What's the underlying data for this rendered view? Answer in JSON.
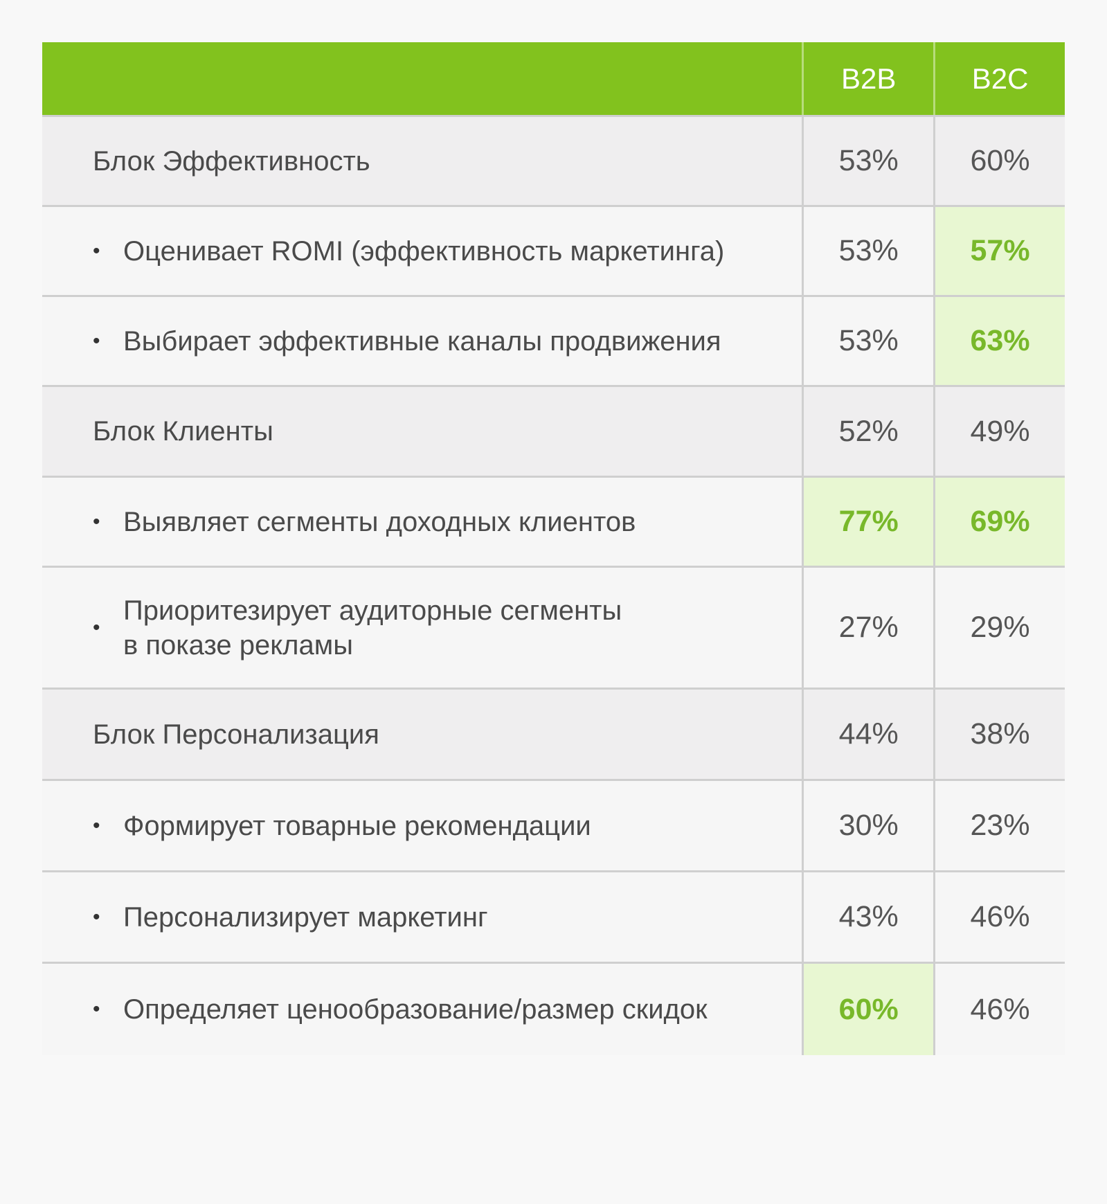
{
  "colors": {
    "header_bg": "#82c21e",
    "highlight_bg": "#e8f7d2",
    "highlight_text": "#78b82a",
    "block_row_bg": "#efeeef",
    "item_row_bg": "#f6f6f6"
  },
  "chart_data": {
    "type": "table",
    "columns": [
      "",
      "B2B",
      "B2C"
    ],
    "rows": [
      {
        "kind": "block",
        "label": "Блок Эффективность",
        "b2b": "53%",
        "b2c": "60%",
        "hl_b2b": false,
        "hl_b2c": false
      },
      {
        "kind": "item",
        "label": "Оценивает ROMI (эффективность маркетинга)",
        "b2b": "53%",
        "b2c": "57%",
        "hl_b2b": false,
        "hl_b2c": true
      },
      {
        "kind": "item",
        "label": "Выбирает эффективные каналы продвижения",
        "b2b": "53%",
        "b2c": "63%",
        "hl_b2b": false,
        "hl_b2c": true
      },
      {
        "kind": "block",
        "label": "Блок Клиенты",
        "b2b": "52%",
        "b2c": "49%",
        "hl_b2b": false,
        "hl_b2c": false
      },
      {
        "kind": "item",
        "label": "Выявляет сегменты доходных клиентов",
        "b2b": "77%",
        "b2c": "69%",
        "hl_b2b": true,
        "hl_b2c": true
      },
      {
        "kind": "item",
        "label": "Приоритезирует аудиторные сегменты\nв показе рекламы",
        "b2b": "27%",
        "b2c": "29%",
        "hl_b2b": false,
        "hl_b2c": false
      },
      {
        "kind": "block",
        "label": "Блок Персонализация",
        "b2b": "44%",
        "b2c": "38%",
        "hl_b2b": false,
        "hl_b2c": false
      },
      {
        "kind": "item",
        "label": "Формирует товарные рекомендации",
        "b2b": "30%",
        "b2c": "23%",
        "hl_b2b": false,
        "hl_b2c": false
      },
      {
        "kind": "item",
        "label": "Персонализирует маркетинг",
        "b2b": "43%",
        "b2c": "46%",
        "hl_b2b": false,
        "hl_b2c": false
      },
      {
        "kind": "item",
        "label": "Определяет ценообразование/размер скидок",
        "b2b": "60%",
        "b2c": "46%",
        "hl_b2b": true,
        "hl_b2c": false
      }
    ]
  },
  "bullet_glyph": "•"
}
